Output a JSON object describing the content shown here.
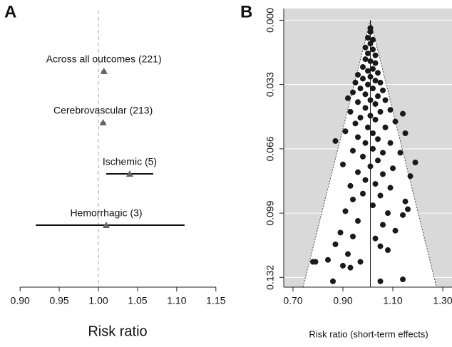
{
  "chart_data": [
    {
      "type": "forest",
      "panel_label": "A",
      "xlabel": "Risk ratio",
      "categories": [
        "Across all outcomes (221)",
        "Cerebrovascular (213)",
        "Ischemic (5)",
        "Hemorrhagic (3)"
      ],
      "values": [
        1.007,
        1.006,
        1.04,
        1.01
      ],
      "lower": [
        1.004,
        1.003,
        1.01,
        0.92
      ],
      "upper": [
        1.01,
        1.009,
        1.07,
        1.11
      ],
      "color": "#666666",
      "reference_line": 1,
      "xlim": [
        0.888,
        1.152
      ],
      "xticks": [
        {
          "value": 0.9,
          "label": "0.90"
        },
        {
          "value": 0.95,
          "label": "0.95"
        },
        {
          "value": 1,
          "label": "1.00"
        },
        {
          "value": 1.05,
          "label": "1.05"
        },
        {
          "value": 1.1,
          "label": "1.10"
        },
        {
          "value": 1.15,
          "label": "1.15"
        }
      ]
    },
    {
      "type": "funnel",
      "panel_label": "B",
      "xlabel": "Risk ratio (short-term effects)",
      "color": "#1a1a1a",
      "x": [
        1.01,
        1.01,
        1.0,
        1.02,
        1.01,
        0.99,
        1.02,
        1.0,
        1.03,
        0.99,
        1.01,
        1.03,
        0.98,
        1.02,
        1.0,
        1.04,
        0.96,
        1.01,
        0.98,
        1.03,
        0.95,
        1.05,
        1.0,
        0.97,
        1.02,
        1.06,
        0.94,
        0.99,
        1.04,
        0.92,
        1.01,
        1.07,
        0.96,
        1.03,
        0.99,
        1.09,
        0.93,
        1.05,
        1.01,
        1.14,
        0.97,
        1.03,
        1.11,
        0.95,
        1.0,
        1.07,
        0.91,
        1.02,
        1.15,
        0.96,
        1.04,
        0.87,
        0.99,
        1.09,
        1.02,
        0.94,
        1.06,
        1.13,
        0.98,
        1.04,
        1.19,
        0.9,
        1.01,
        1.1,
        0.96,
        1.06,
        1.17,
        0.99,
        1.03,
        0.93,
        1.09,
        0.98,
        1.05,
        0.94,
        1.15,
        1.02,
        1.16,
        0.91,
        1.08,
        1.14,
        0.96,
        1.06,
        0.89,
        1.11,
        0.94,
        1.03,
        0.87,
        1.05,
        0.92,
        1.08,
        0.84,
        0.97,
        0.79,
        0.78,
        0.9,
        0.93,
        1.14,
        0.86,
        1.05
      ],
      "values": [
        0.004,
        0.006,
        0.009,
        0.01,
        0.012,
        0.014,
        0.015,
        0.017,
        0.018,
        0.02,
        0.021,
        0.022,
        0.024,
        0.025,
        0.026,
        0.027,
        0.028,
        0.029,
        0.03,
        0.031,
        0.032,
        0.032,
        0.033,
        0.035,
        0.035,
        0.036,
        0.037,
        0.038,
        0.039,
        0.04,
        0.041,
        0.041,
        0.042,
        0.043,
        0.045,
        0.046,
        0.047,
        0.047,
        0.049,
        0.048,
        0.05,
        0.051,
        0.052,
        0.053,
        0.055,
        0.055,
        0.057,
        0.058,
        0.058,
        0.06,
        0.061,
        0.062,
        0.063,
        0.063,
        0.066,
        0.067,
        0.068,
        0.068,
        0.07,
        0.072,
        0.073,
        0.074,
        0.075,
        0.076,
        0.078,
        0.079,
        0.08,
        0.082,
        0.084,
        0.085,
        0.086,
        0.089,
        0.09,
        0.092,
        0.093,
        0.095,
        0.097,
        0.098,
        0.099,
        0.1,
        0.103,
        0.105,
        0.109,
        0.108,
        0.111,
        0.112,
        0.115,
        0.116,
        0.12,
        0.118,
        0.123,
        0.124,
        0.124,
        0.124,
        0.126,
        0.127,
        0.133,
        0.134,
        0.134
      ],
      "funnel_center": 1.01,
      "funnel_base": [
        0.74,
        1.275
      ],
      "xlim": [
        0.663,
        1.337
      ],
      "ylim": [
        -0.006,
        0.137
      ],
      "y_inverted": true,
      "xticks": [
        {
          "value": 0.7,
          "label": "0.70"
        },
        {
          "value": 0.9,
          "label": "0.90"
        },
        {
          "value": 1.1,
          "label": "1.10"
        },
        {
          "value": 1.3,
          "label": "1.30"
        }
      ],
      "yticks": [
        {
          "value": 0,
          "label": "0.000"
        },
        0.033,
        0.066,
        0.099,
        0.132
      ]
    }
  ]
}
